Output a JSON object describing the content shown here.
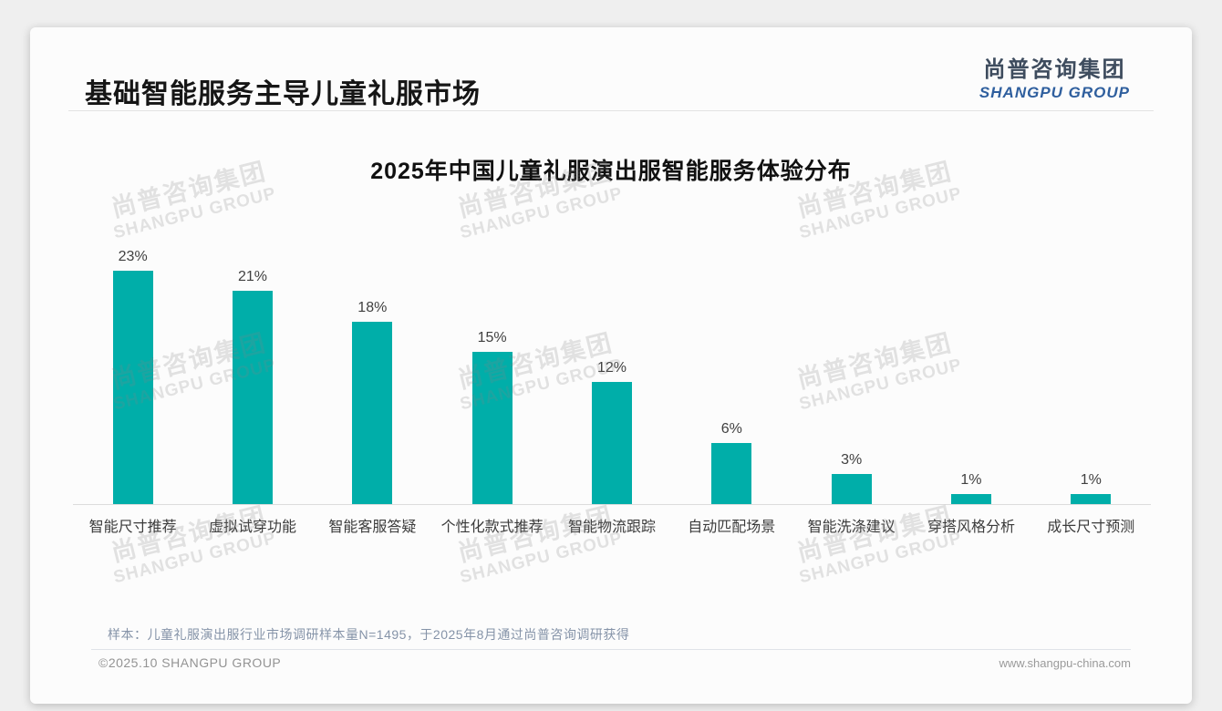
{
  "header": {
    "title": "基础智能服务主导儿童礼服市场",
    "logo": {
      "cn": "尚普咨询集团",
      "en": "SHANGPU GROUP"
    }
  },
  "watermark": {
    "line1": "尚普咨询集团",
    "line2": "SHANGPU GROUP"
  },
  "chart_data": {
    "type": "bar",
    "title": "2025年中国儿童礼服演出服智能服务体验分布",
    "categories": [
      "智能尺寸推荐",
      "虚拟试穿功能",
      "智能客服答疑",
      "个性化款式推荐",
      "智能物流跟踪",
      "自动匹配场景",
      "智能洗涤建议",
      "穿搭风格分析",
      "成长尺寸预测"
    ],
    "values": [
      23,
      21,
      18,
      15,
      12,
      6,
      3,
      1,
      1
    ],
    "data_labels": [
      "23%",
      "21%",
      "18%",
      "15%",
      "12%",
      "6%",
      "3%",
      "1%",
      "1%"
    ],
    "unit": "%",
    "ylim": [
      0,
      25
    ],
    "grid": false,
    "legend": false,
    "bar_color": "#00AEA9",
    "xlabel": "",
    "ylabel": ""
  },
  "note": {
    "text": "样本：儿童礼服演出服行业市场调研样本量N=1495，于2025年8月通过尚普咨询调研获得"
  },
  "footer": {
    "left": "©2025.10 SHANGPU GROUP",
    "right": "www.shangpu-china.com"
  },
  "colors": {
    "bar": "#00AEA9",
    "page_background": "#efefef",
    "card_background": "#fcfcfc",
    "logo_cn": "#3e4c5e",
    "logo_en": "#2f5f9e",
    "note_text": "#8593a8",
    "footer_text": "#949494"
  }
}
